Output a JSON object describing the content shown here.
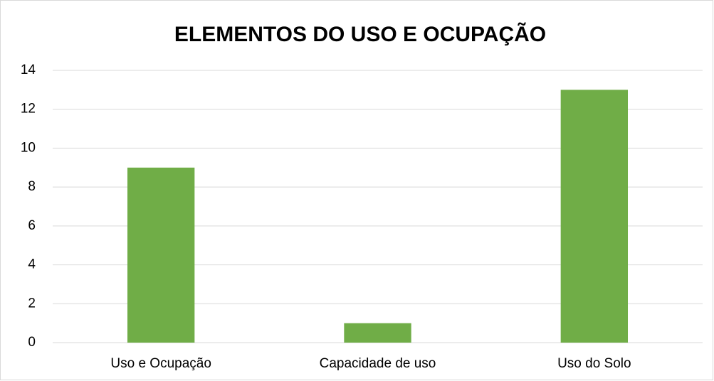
{
  "chart_data": {
    "type": "bar",
    "title": "ELEMENTOS DO USO E OCUPAÇÃO",
    "categories": [
      "Uso e Ocupação",
      "Capacidade de uso",
      "Uso do Solo"
    ],
    "values": [
      9,
      1,
      13
    ],
    "color": "#70ad47",
    "ylim": [
      0,
      14
    ],
    "yticks": [
      0,
      2,
      4,
      6,
      8,
      10,
      12,
      14
    ],
    "grid": true
  }
}
